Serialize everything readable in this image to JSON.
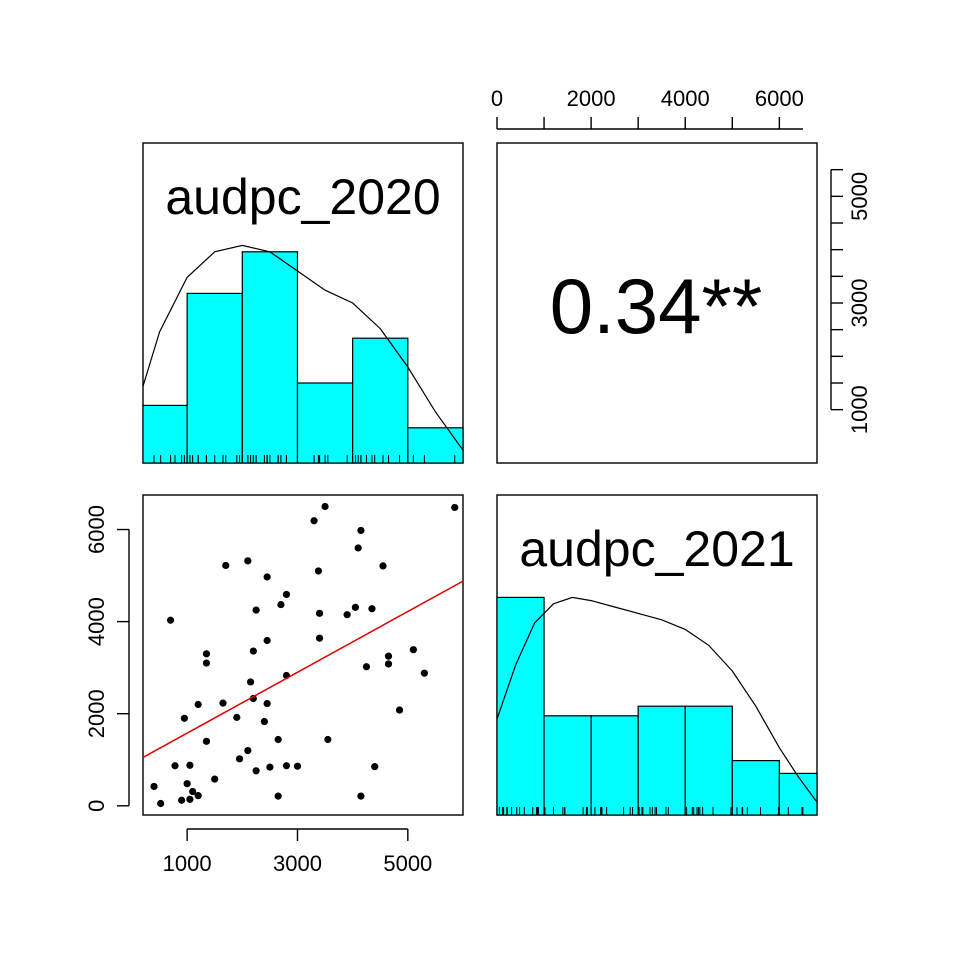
{
  "chart_data": {
    "type": "scatter-matrix",
    "variables": [
      "audpc_2020",
      "audpc_2021"
    ],
    "correlation": {
      "label": "0.34**",
      "r": 0.34,
      "significance": "**"
    },
    "histograms": [
      {
        "variable": "audpc_2020",
        "title": "audpc_2020",
        "xlim": [
          200,
          6000
        ],
        "breaks": [
          200,
          1000,
          2000,
          3000,
          4000,
          5000,
          6000
        ],
        "heights": [
          0.18,
          0.53,
          0.66,
          0.25,
          0.39,
          0.11
        ],
        "density_x": [
          200,
          500,
          1000,
          1500,
          2000,
          2500,
          3000,
          3500,
          4000,
          4500,
          5000,
          5500,
          6000
        ],
        "density_y": [
          0.24,
          0.41,
          0.58,
          0.66,
          0.68,
          0.66,
          0.6,
          0.54,
          0.5,
          0.42,
          0.3,
          0.16,
          0.04
        ]
      },
      {
        "variable": "audpc_2021",
        "title": "audpc_2021",
        "xlim": [
          0,
          6800
        ],
        "breaks": [
          0,
          1000,
          2000,
          3000,
          4000,
          5000,
          6000,
          6800
        ],
        "heights": [
          0.68,
          0.31,
          0.31,
          0.34,
          0.34,
          0.17,
          0.13
        ],
        "density_x": [
          0,
          400,
          800,
          1200,
          1600,
          2000,
          2500,
          3000,
          3500,
          4000,
          4500,
          5000,
          5500,
          6000,
          6400,
          6800
        ],
        "density_y": [
          0.3,
          0.47,
          0.6,
          0.66,
          0.68,
          0.67,
          0.65,
          0.63,
          0.61,
          0.58,
          0.53,
          0.45,
          0.34,
          0.21,
          0.12,
          0.04
        ]
      }
    ],
    "scatter": {
      "x_variable": "audpc_2020",
      "y_variable": "audpc_2021",
      "xlim": [
        200,
        6000
      ],
      "ylim": [
        -200,
        6750
      ],
      "x_ticks": [
        1000,
        3000,
        5000
      ],
      "y_ticks": [
        0,
        2000,
        4000,
        6000
      ],
      "fit_line": {
        "x": [
          200,
          6000
        ],
        "y": [
          1050,
          4880
        ]
      },
      "points": [
        [
          400,
          420
        ],
        [
          520,
          50
        ],
        [
          700,
          4030
        ],
        [
          780,
          870
        ],
        [
          900,
          120
        ],
        [
          950,
          1900
        ],
        [
          1000,
          480
        ],
        [
          1050,
          880
        ],
        [
          1050,
          140
        ],
        [
          1100,
          310
        ],
        [
          1200,
          220
        ],
        [
          1200,
          2200
        ],
        [
          1350,
          1400
        ],
        [
          1350,
          3300
        ],
        [
          1350,
          3100
        ],
        [
          1500,
          580
        ],
        [
          1650,
          2230
        ],
        [
          1700,
          5220
        ],
        [
          1900,
          1920
        ],
        [
          1950,
          1020
        ],
        [
          2100,
          5320
        ],
        [
          2100,
          1200
        ],
        [
          2150,
          2690
        ],
        [
          2200,
          3360
        ],
        [
          2200,
          2330
        ],
        [
          2250,
          4250
        ],
        [
          2250,
          760
        ],
        [
          2400,
          1830
        ],
        [
          2450,
          2220
        ],
        [
          2450,
          3590
        ],
        [
          2450,
          4970
        ],
        [
          2500,
          840
        ],
        [
          2650,
          1440
        ],
        [
          2650,
          210
        ],
        [
          2700,
          4370
        ],
        [
          2800,
          2830
        ],
        [
          2800,
          4590
        ],
        [
          2800,
          870
        ],
        [
          3000,
          860
        ],
        [
          3300,
          6190
        ],
        [
          3380,
          5100
        ],
        [
          3400,
          4180
        ],
        [
          3400,
          3640
        ],
        [
          3500,
          6500
        ],
        [
          3550,
          1440
        ],
        [
          3900,
          4150
        ],
        [
          4050,
          4310
        ],
        [
          4100,
          5600
        ],
        [
          4150,
          5980
        ],
        [
          4150,
          210
        ],
        [
          4250,
          3020
        ],
        [
          4350,
          4280
        ],
        [
          4400,
          850
        ],
        [
          4550,
          5210
        ],
        [
          4650,
          3250
        ],
        [
          4650,
          3080
        ],
        [
          4850,
          2080
        ],
        [
          5100,
          3390
        ],
        [
          5300,
          2880
        ],
        [
          5850,
          6480
        ]
      ]
    },
    "axes": {
      "top_ticks": [
        0,
        2000,
        4000,
        6000
      ],
      "top_xlim": [
        0,
        6800
      ],
      "right_ticks": [
        1000,
        3000,
        5000
      ],
      "right_ylim": [
        0,
        6000
      ]
    }
  }
}
